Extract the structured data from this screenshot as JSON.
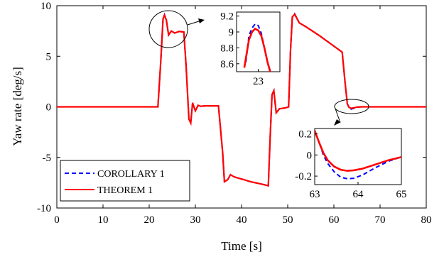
{
  "chart_data": {
    "type": "line",
    "xlabel": "Time [s]",
    "ylabel": "Yaw rate [deg/s]",
    "xlim": [
      0,
      80
    ],
    "ylim": [
      -10,
      10
    ],
    "xticks": [
      "0",
      "10",
      "20",
      "30",
      "40",
      "50",
      "60",
      "70",
      "80"
    ],
    "yticks": [
      "10",
      "5",
      "0",
      "-5",
      "-10"
    ],
    "grid": false,
    "legend_position": "bottom-left",
    "series": [
      {
        "name": "COROLLARY 1",
        "color": "#0000ff",
        "style": "dashed",
        "x": [
          0,
          21.9,
          22.5,
          23.0,
          23.3,
          23.7,
          24.2,
          24.8,
          25.5,
          26.5,
          27.5,
          28.0,
          28.6,
          29.0,
          29.4,
          30.0,
          30.6,
          31.2,
          32.0,
          33.5,
          35.0,
          35.9,
          36.3,
          37.0,
          37.6,
          38.3,
          39.0,
          40.5,
          42.0,
          44.0,
          45.8,
          46.2,
          46.6,
          47.0,
          47.5,
          48.2,
          49.5,
          50.2,
          50.6,
          51.0,
          51.5,
          52.5,
          54.0,
          57.0,
          60.0,
          61.8,
          62.4,
          62.9,
          63.3,
          63.7,
          64.3,
          65.0,
          66.0,
          68.0,
          80
        ],
        "y": [
          0,
          0,
          4.5,
          8.6,
          9.1,
          8.6,
          7.1,
          7.5,
          7.3,
          7.45,
          7.4,
          4.0,
          -1.2,
          -1.6,
          0.4,
          -0.4,
          0.15,
          0.05,
          0.1,
          0.1,
          0.1,
          -4.5,
          -7.4,
          -7.2,
          -6.7,
          -6.9,
          -7.0,
          -7.2,
          -7.4,
          -7.6,
          -7.8,
          -3.0,
          1.2,
          1.6,
          -0.6,
          -0.2,
          -0.1,
          0.0,
          5.5,
          8.9,
          9.2,
          8.3,
          7.9,
          7.0,
          6.0,
          5.4,
          2.5,
          0.3,
          -0.1,
          -0.23,
          -0.15,
          -0.03,
          0,
          0,
          0
        ]
      },
      {
        "name": "THEOREM 1",
        "color": "#ff0000",
        "style": "solid",
        "x": [
          0,
          21.9,
          22.5,
          23.0,
          23.3,
          23.7,
          24.2,
          24.8,
          25.5,
          26.5,
          27.5,
          28.0,
          28.6,
          29.0,
          29.4,
          30.0,
          30.6,
          31.2,
          32.0,
          33.5,
          35.0,
          35.9,
          36.3,
          37.0,
          37.6,
          38.3,
          39.0,
          40.5,
          42.0,
          44.0,
          45.8,
          46.2,
          46.6,
          47.0,
          47.5,
          48.2,
          49.5,
          50.2,
          50.6,
          51.0,
          51.5,
          52.5,
          54.0,
          57.0,
          60.0,
          61.8,
          62.4,
          62.9,
          63.3,
          63.7,
          64.3,
          65.0,
          66.0,
          68.0,
          80
        ],
        "y": [
          0,
          0,
          4.5,
          8.7,
          9.05,
          8.6,
          7.1,
          7.5,
          7.3,
          7.45,
          7.4,
          4.0,
          -1.2,
          -1.6,
          0.4,
          -0.4,
          0.15,
          0.05,
          0.1,
          0.1,
          0.1,
          -4.5,
          -7.4,
          -7.2,
          -6.7,
          -6.9,
          -7.0,
          -7.2,
          -7.4,
          -7.6,
          -7.8,
          -3.0,
          1.2,
          1.6,
          -0.6,
          -0.2,
          -0.1,
          0.0,
          5.5,
          8.9,
          9.15,
          8.3,
          7.9,
          7.0,
          6.0,
          5.4,
          2.5,
          0.3,
          -0.05,
          -0.15,
          -0.1,
          -0.02,
          0,
          0,
          0
        ]
      }
    ],
    "insets": [
      {
        "position": "top",
        "xticks": [
          "23"
        ],
        "yticks": [
          "9.2",
          "9",
          "8.8",
          "8.6"
        ],
        "xlim": [
          22.3,
          23.7
        ],
        "ylim": [
          8.5,
          9.25
        ],
        "tick_x": [
          23
        ],
        "tick_y": [
          9.2,
          9.0,
          8.8,
          8.6
        ],
        "series": [
          {
            "name": "COROLLARY 1",
            "color": "#0000ff",
            "style": "dashed",
            "x": [
              22.6,
              22.7,
              22.8,
              22.9,
              23.0,
              23.1,
              23.2,
              23.3,
              23.4
            ],
            "y": [
              8.62,
              8.95,
              9.05,
              9.1,
              9.08,
              8.98,
              8.8,
              8.62,
              8.5
            ]
          },
          {
            "name": "THEOREM 1",
            "color": "#ff0000",
            "style": "solid",
            "x": [
              22.55,
              22.7,
              22.8,
              22.9,
              23.0,
              23.1,
              23.2,
              23.3,
              23.4
            ],
            "y": [
              8.55,
              8.9,
              9.0,
              9.04,
              9.02,
              8.95,
              8.8,
              8.62,
              8.48
            ]
          }
        ]
      },
      {
        "position": "bottom-right",
        "xticks": [
          "63",
          "64",
          "65"
        ],
        "yticks": [
          "0.2",
          "0",
          "-0.2"
        ],
        "xlim": [
          63.0,
          65.0
        ],
        "ylim": [
          -0.28,
          0.25
        ],
        "tick_x": [
          63,
          64,
          65
        ],
        "tick_y": [
          0.2,
          0,
          -0.2
        ],
        "series": [
          {
            "name": "COROLLARY 1",
            "color": "#0000ff",
            "style": "dashed",
            "x": [
              63.0,
              63.1,
              63.2,
              63.3,
              63.45,
              63.6,
              63.75,
              63.9,
              64.1,
              64.4,
              64.7,
              65.0
            ],
            "y": [
              0.23,
              0.12,
              0.0,
              -0.08,
              -0.16,
              -0.21,
              -0.225,
              -0.22,
              -0.19,
              -0.12,
              -0.06,
              -0.02
            ]
          },
          {
            "name": "THEOREM 1",
            "color": "#ff0000",
            "style": "solid",
            "x": [
              63.0,
              63.1,
              63.2,
              63.3,
              63.45,
              63.6,
              63.75,
              63.9,
              64.1,
              64.4,
              64.7,
              65.0
            ],
            "y": [
              0.23,
              0.12,
              0.02,
              -0.05,
              -0.11,
              -0.14,
              -0.15,
              -0.145,
              -0.13,
              -0.09,
              -0.05,
              -0.02
            ]
          }
        ]
      }
    ]
  }
}
